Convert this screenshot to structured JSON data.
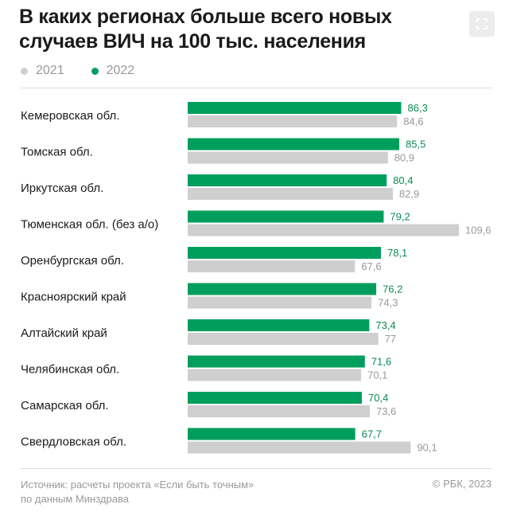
{
  "title": "В каких регионах больше всего новых случаев ВИЧ на 100 тыс. населения",
  "source": "Источник: расчеты проекта «Если быть точным»\nпо данным Минздрава",
  "copyright": "© РБК, 2023",
  "expand_icon": "expand-icon",
  "colors": {
    "s2021": "#cfcfcf",
    "s2022": "#009e5c",
    "label2021": "#999999",
    "label2022": "#0a8a52"
  },
  "chart_data": {
    "type": "bar",
    "orientation": "horizontal",
    "legend": "top-left",
    "categories": [
      "Кемеровская обл.",
      "Томская обл.",
      "Иркутская обл.",
      "Тюменская обл. (без а/о)",
      "Оренбургская обл.",
      "Красноярский край",
      "Алтайский край",
      "Челябинская обл.",
      "Самарская обл.",
      "Свердловская обл."
    ],
    "series": [
      {
        "name": "2022",
        "values": [
          86.3,
          85.5,
          80.4,
          79.2,
          78.1,
          76.2,
          73.4,
          71.6,
          70.4,
          67.7
        ],
        "labels": [
          "86,3",
          "85,5",
          "80,4",
          "79,2",
          "78,1",
          "76,2",
          "73,4",
          "71,6",
          "70,4",
          "67,7"
        ]
      },
      {
        "name": "2021",
        "values": [
          84.6,
          80.9,
          82.9,
          109.6,
          67.6,
          74.3,
          77,
          70.1,
          73.6,
          90.1
        ],
        "labels": [
          "84,6",
          "80,9",
          "82,9",
          "109,6",
          "67,6",
          "74,3",
          "77",
          "70,1",
          "73,6",
          "90,1"
        ]
      }
    ],
    "xlim": [
      0,
      109.6
    ],
    "grid": false
  }
}
